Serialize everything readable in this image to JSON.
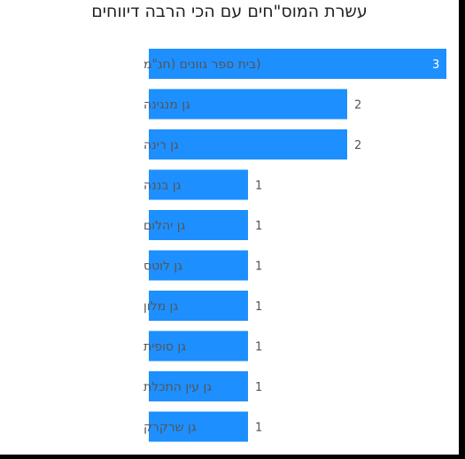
{
  "chart_data": {
    "type": "bar",
    "orientation": "horizontal",
    "title": "עשרת המוס\"חים עם הכי הרבה דיווחים",
    "xlabel": "",
    "ylabel": "",
    "categories": [
      "(בית ספר גוונים (חנ\"מ",
      "גן מנגינה",
      "גן רינה",
      "גן בננה",
      "גן יהלום",
      "גן לוטס",
      "גן מלון",
      "גן סופית",
      "גן עין התכלת",
      "גן שרקרק"
    ],
    "values": [
      3,
      2,
      2,
      1,
      1,
      1,
      1,
      1,
      1,
      1
    ],
    "xlim": [
      0,
      3
    ],
    "grid": false,
    "legend": "none",
    "bar_color": "#1e8fff",
    "value_label_color_inside": "#ffffff",
    "value_label_color_outside": "#555555"
  }
}
